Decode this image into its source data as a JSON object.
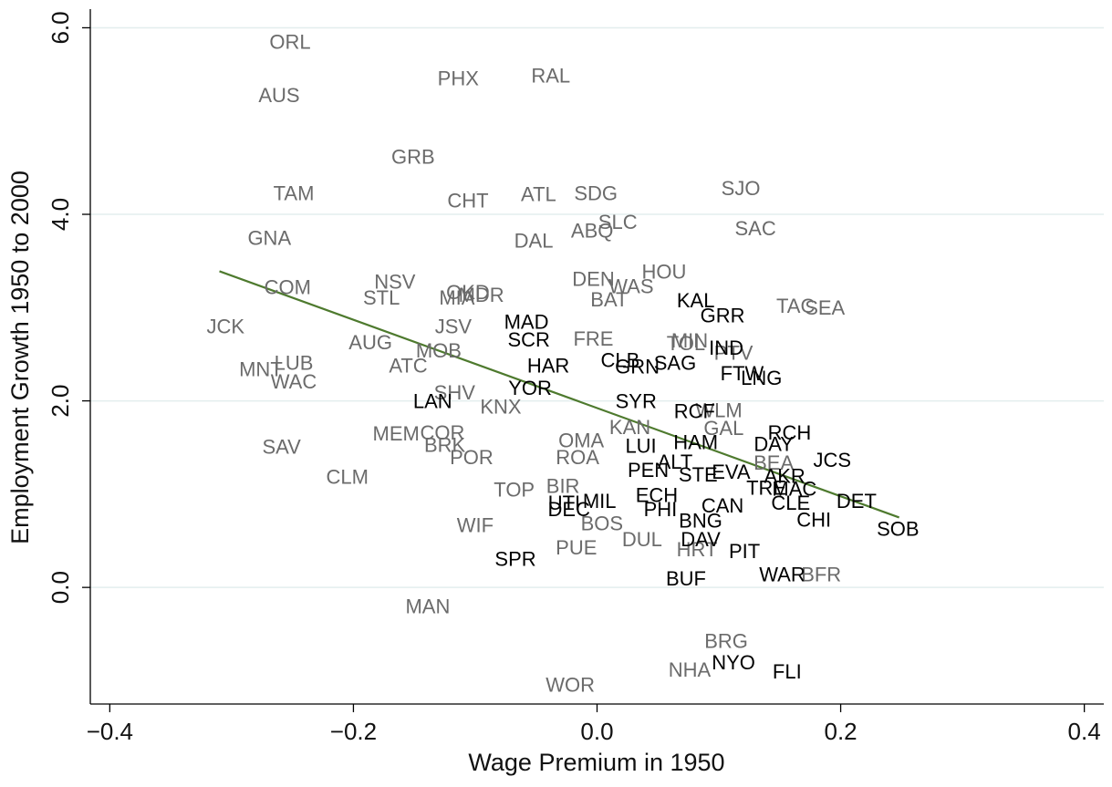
{
  "chart_data": {
    "type": "scatter",
    "x_label": "Wage Premium in 1950",
    "y_label": "Employment Growth 1950 to 2000",
    "xlim": [
      -0.416,
      0.416
    ],
    "ylim": [
      -1.25,
      6.2
    ],
    "xticks": [
      {
        "value": -0.4,
        "label": "−0.4"
      },
      {
        "value": -0.2,
        "label": "−0.2"
      },
      {
        "value": 0,
        "label": "0.0"
      },
      0.2,
      0.4
    ],
    "yticks": [
      {
        "value": 0,
        "label": "0.0"
      },
      {
        "value": 2,
        "label": "2.0"
      },
      {
        "value": 4,
        "label": "4.0"
      },
      {
        "value": 6,
        "label": "6.0"
      }
    ],
    "grid": true,
    "series": [
      {
        "color": "#6b6b6b",
        "labels": [
          "ORL",
          "AUS",
          "PHX",
          "RAL",
          "GRB",
          "TAM",
          "CHT",
          "ATL",
          "SDG",
          "SJO",
          "SLC",
          "ABQ",
          "SAC",
          "GNA",
          "DAL",
          "HOU",
          "DEN",
          "NSV",
          "COM",
          "OKD",
          "MDR",
          "WAS",
          "STL",
          "MIA",
          "BAT",
          "TAC",
          "SEA",
          "JCK",
          "JSV",
          "FRE",
          "AUG",
          "TOL",
          "MIN",
          "MOB",
          "PTV",
          "LUB",
          "MNT",
          "ATC",
          "WAC",
          "SHV",
          "KNX",
          "WLM",
          "KAN",
          "MEM",
          "COR",
          "GAL",
          "OMA",
          "BRK",
          "SAV",
          "ROA",
          "POR",
          "BEA",
          "CLM",
          "TOP",
          "BIR",
          "BOS",
          "DUL",
          "WIF",
          "PUE",
          "HRT",
          "MAN",
          "BRG",
          "NHA",
          "WOR",
          "BFR"
        ],
        "x": [
          -0.252,
          -0.261,
          -0.114,
          -0.038,
          -0.151,
          -0.249,
          -0.106,
          -0.048,
          -0.001,
          0.118,
          0.017,
          -0.004,
          0.13,
          -0.269,
          -0.052,
          0.055,
          -0.003,
          -0.166,
          -0.254,
          -0.106,
          -0.095,
          0.028,
          -0.177,
          -0.115,
          0.01,
          0.163,
          0.187,
          -0.305,
          -0.118,
          -0.003,
          -0.186,
          0.073,
          0.076,
          -0.13,
          0.112,
          -0.249,
          -0.276,
          -0.155,
          -0.249,
          -0.117,
          -0.079,
          0.1,
          0.027,
          -0.165,
          -0.127,
          0.104,
          -0.013,
          -0.125,
          -0.259,
          -0.016,
          -0.103,
          0.145,
          -0.205,
          -0.068,
          -0.028,
          0.004,
          0.037,
          -0.1,
          -0.017,
          0.082,
          -0.139,
          0.106,
          0.076,
          -0.022,
          0.184
        ],
        "y": [
          5.83,
          5.26,
          5.44,
          5.47,
          4.6,
          4.21,
          4.13,
          4.2,
          4.21,
          4.26,
          3.9,
          3.81,
          3.83,
          3.73,
          3.7,
          3.37,
          3.29,
          3.26,
          3.2,
          3.15,
          3.12,
          3.21,
          3.09,
          3.09,
          3.07,
          3.0,
          2.98,
          2.78,
          2.78,
          2.65,
          2.61,
          2.6,
          2.63,
          2.52,
          2.5,
          2.39,
          2.32,
          2.36,
          2.19,
          2.07,
          1.92,
          1.88,
          1.7,
          1.63,
          1.64,
          1.69,
          1.56,
          1.51,
          1.49,
          1.38,
          1.38,
          1.32,
          1.17,
          1.03,
          1.07,
          0.67,
          0.5,
          0.65,
          0.41,
          0.39,
          -0.22,
          -0.59,
          -0.9,
          -1.06,
          0.12
        ]
      },
      {
        "color": "#000000",
        "labels": [
          "MAD",
          "SCR",
          "KAL",
          "GRR",
          "IND",
          "CLB",
          "GRN",
          "SAG",
          "HAR",
          "FTW",
          "LNG",
          "YOR",
          "LAN",
          "SYR",
          "RCF",
          "RCH",
          "DAY",
          "HAM",
          "LUI",
          "JCS",
          "ALT",
          "PEN",
          "STE",
          "EVA",
          "AKR",
          "TRE",
          "MAC",
          "ECH",
          "CLE",
          "DET",
          "MIL",
          "UTI",
          "DEC",
          "CAN",
          "PHI",
          "BNG",
          "CHI",
          "SOB",
          "DAV",
          "PIT",
          "SPR",
          "BUF",
          "WAR",
          "NYO",
          "FLI"
        ],
        "x": [
          -0.058,
          -0.056,
          0.081,
          0.103,
          0.106,
          0.019,
          0.033,
          0.064,
          -0.04,
          0.119,
          0.135,
          -0.055,
          -0.135,
          0.032,
          0.08,
          0.158,
          0.145,
          0.081,
          0.036,
          0.193,
          0.064,
          0.042,
          0.083,
          0.11,
          0.154,
          0.139,
          0.162,
          0.049,
          0.159,
          0.213,
          0.002,
          -0.027,
          -0.023,
          0.103,
          0.052,
          0.085,
          0.178,
          0.247,
          0.085,
          0.121,
          -0.067,
          0.073,
          0.152,
          0.112,
          0.156
        ],
        "y": [
          2.83,
          2.64,
          3.06,
          2.9,
          2.55,
          2.42,
          2.35,
          2.39,
          2.36,
          2.28,
          2.23,
          2.12,
          1.98,
          1.98,
          1.87,
          1.64,
          1.52,
          1.54,
          1.5,
          1.35,
          1.33,
          1.24,
          1.19,
          1.22,
          1.18,
          1.05,
          1.04,
          0.97,
          0.89,
          0.91,
          0.91,
          0.89,
          0.82,
          0.86,
          0.82,
          0.7,
          0.71,
          0.61,
          0.5,
          0.37,
          0.29,
          0.08,
          0.12,
          -0.82,
          -0.92
        ]
      }
    ],
    "fit": {
      "color": "#4e7a2e",
      "x": [
        -0.31,
        0.248
      ],
      "y": [
        3.39,
        0.75
      ]
    }
  }
}
